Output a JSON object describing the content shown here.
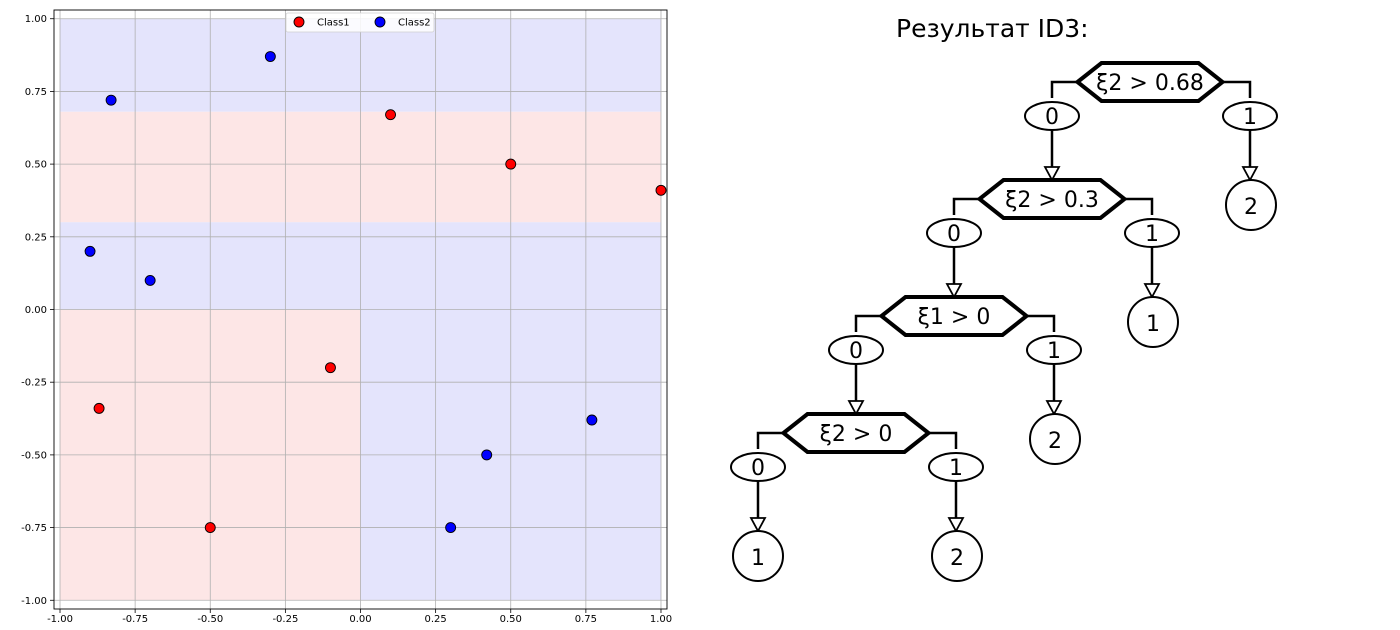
{
  "chart_data": {
    "type": "scatter",
    "xlim": [
      -1.02,
      1.02
    ],
    "ylim": [
      -1.03,
      1.03
    ],
    "x_ticks": [
      -1.0,
      -0.75,
      -0.5,
      -0.25,
      0.0,
      0.25,
      0.5,
      0.75,
      1.0
    ],
    "y_ticks": [
      -1.0,
      -0.75,
      -0.5,
      -0.25,
      0.0,
      0.25,
      0.5,
      0.75,
      1.0
    ],
    "x_tick_labels": [
      "-1.00",
      "-0.75",
      "-0.50",
      "-0.25",
      "0.00",
      "0.25",
      "0.50",
      "0.75",
      "1.00"
    ],
    "y_tick_labels": [
      "-1.00",
      "-0.75",
      "-0.50",
      "-0.25",
      "0.00",
      "0.25",
      "0.50",
      "0.75",
      "1.00"
    ],
    "grid": true,
    "legend_position": "top-center",
    "regions": [
      {
        "x": [
          -1.0,
          1.0
        ],
        "y": [
          0.68,
          1.0
        ],
        "color": "#e4e4fc"
      },
      {
        "x": [
          -1.0,
          1.0
        ],
        "y": [
          0.3,
          0.68
        ],
        "color": "#fde6e6"
      },
      {
        "x": [
          -1.0,
          1.0
        ],
        "y": [
          0.0,
          0.3
        ],
        "color": "#e4e4fc"
      },
      {
        "x": [
          -1.0,
          0.0
        ],
        "y": [
          -1.0,
          0.0
        ],
        "color": "#fde6e6"
      },
      {
        "x": [
          0.0,
          1.0
        ],
        "y": [
          -1.0,
          0.0
        ],
        "color": "#e4e4fc"
      }
    ],
    "series": [
      {
        "name": "Class1",
        "color": "#ff0000",
        "points": [
          [
            -0.87,
            -0.34
          ],
          [
            -0.5,
            -0.75
          ],
          [
            -0.1,
            -0.2
          ],
          [
            0.1,
            0.67
          ],
          [
            0.5,
            0.5
          ],
          [
            1.0,
            0.41
          ]
        ]
      },
      {
        "name": "Class2",
        "color": "#0000ff",
        "points": [
          [
            -0.9,
            0.2
          ],
          [
            -0.83,
            0.72
          ],
          [
            -0.7,
            0.1
          ],
          [
            -0.3,
            0.87
          ],
          [
            0.3,
            -0.75
          ],
          [
            0.42,
            -0.5
          ],
          [
            0.77,
            -0.38
          ]
        ]
      }
    ]
  },
  "tree": {
    "title": "Результат ID3:",
    "nodes": [
      {
        "id": "n1",
        "kind": "split",
        "label": "ξ2 > 0.68"
      },
      {
        "id": "n2",
        "kind": "split",
        "label": "ξ2 > 0.3"
      },
      {
        "id": "n3",
        "kind": "split",
        "label": "ξ1 > 0"
      },
      {
        "id": "n4",
        "kind": "split",
        "label": "ξ2 > 0"
      },
      {
        "id": "l1",
        "kind": "leaf",
        "label": "2"
      },
      {
        "id": "l2",
        "kind": "leaf",
        "label": "1"
      },
      {
        "id": "l3",
        "kind": "leaf",
        "label": "2"
      },
      {
        "id": "l4",
        "kind": "leaf",
        "label": "1"
      },
      {
        "id": "l5",
        "kind": "leaf",
        "label": "2"
      }
    ],
    "edges": [
      {
        "from": "n1",
        "to": "n2",
        "label": "0"
      },
      {
        "from": "n1",
        "to": "l1",
        "label": "1"
      },
      {
        "from": "n2",
        "to": "n3",
        "label": "0"
      },
      {
        "from": "n2",
        "to": "l2",
        "label": "1"
      },
      {
        "from": "n3",
        "to": "n4",
        "label": "0"
      },
      {
        "from": "n3",
        "to": "l3",
        "label": "1"
      },
      {
        "from": "n4",
        "to": "l4",
        "label": "0"
      },
      {
        "from": "n4",
        "to": "l5",
        "label": "1"
      }
    ]
  }
}
